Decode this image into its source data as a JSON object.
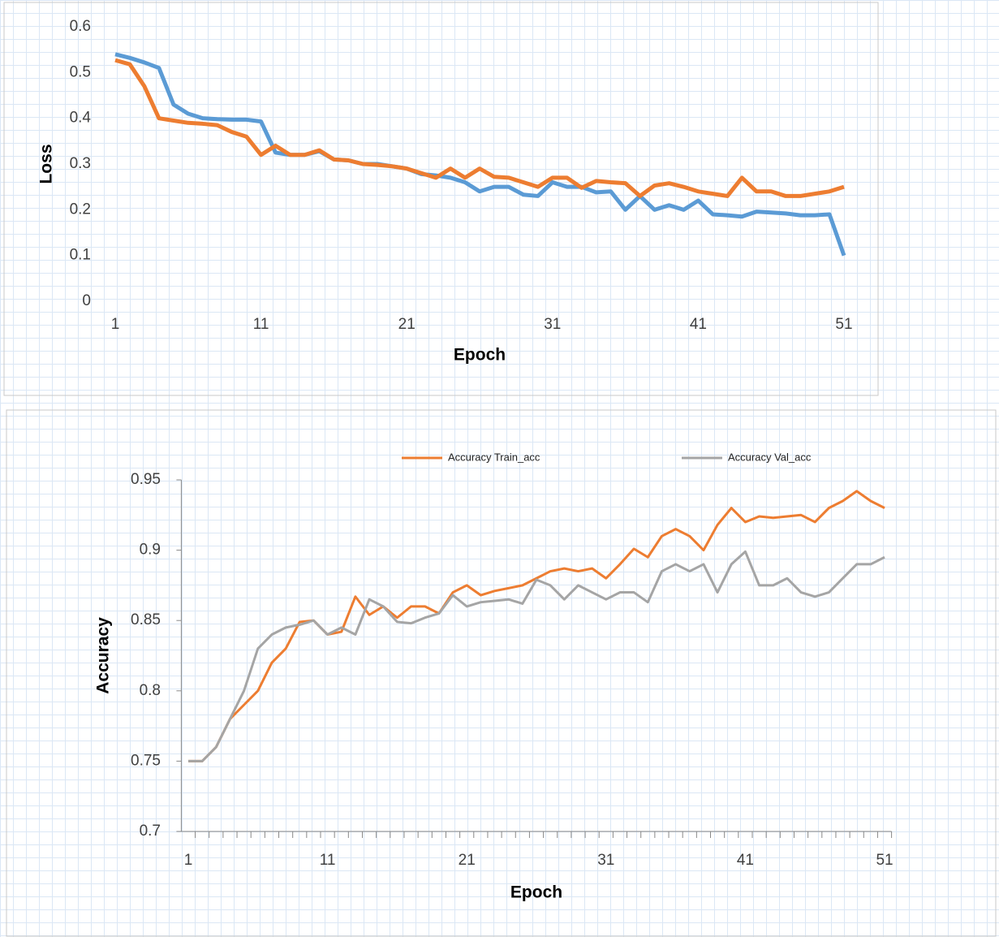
{
  "chart_data": [
    {
      "type": "line",
      "ylabel": "Loss",
      "xlabel": "Epoch",
      "x": [
        1,
        2,
        3,
        4,
        5,
        6,
        7,
        8,
        9,
        10,
        11,
        12,
        13,
        14,
        15,
        16,
        17,
        18,
        19,
        20,
        21,
        22,
        23,
        24,
        25,
        26,
        27,
        28,
        29,
        30,
        31,
        32,
        33,
        34,
        35,
        36,
        37,
        38,
        39,
        40,
        41,
        42,
        43,
        44,
        45,
        46,
        47,
        48,
        49,
        50,
        51
      ],
      "xlim": [
        1,
        51
      ],
      "xticks": [
        1,
        11,
        21,
        31,
        41,
        51
      ],
      "ylim": [
        0,
        0.6
      ],
      "yticks": [
        0,
        0.1,
        0.2,
        0.3,
        0.4,
        0.5,
        0.6
      ],
      "series": [
        {
          "color": "#5b9bd5",
          "values": [
            0.54,
            0.532,
            0.522,
            0.51,
            0.43,
            0.41,
            0.4,
            0.398,
            0.397,
            0.397,
            0.393,
            0.325,
            0.32,
            0.32,
            0.328,
            0.31,
            0.308,
            0.3,
            0.3,
            0.295,
            0.29,
            0.278,
            0.275,
            0.27,
            0.26,
            0.24,
            0.25,
            0.25,
            0.233,
            0.23,
            0.26,
            0.25,
            0.25,
            0.238,
            0.24,
            0.2,
            0.23,
            0.2,
            0.21,
            0.2,
            0.22,
            0.19,
            0.188,
            0.185,
            0.196,
            0.194,
            0.192,
            0.188,
            0.188,
            0.19,
            0.1
          ]
        },
        {
          "color": "#ed7d31",
          "values": [
            0.527,
            0.518,
            0.47,
            0.4,
            0.395,
            0.39,
            0.388,
            0.385,
            0.37,
            0.36,
            0.32,
            0.34,
            0.32,
            0.32,
            0.33,
            0.31,
            0.308,
            0.3,
            0.298,
            0.295,
            0.29,
            0.28,
            0.27,
            0.29,
            0.27,
            0.29,
            0.272,
            0.27,
            0.26,
            0.25,
            0.27,
            0.27,
            0.248,
            0.263,
            0.26,
            0.258,
            0.23,
            0.253,
            0.258,
            0.25,
            0.24,
            0.235,
            0.23,
            0.27,
            0.24,
            0.24,
            0.23,
            0.23,
            0.235,
            0.24,
            0.25
          ]
        }
      ]
    },
    {
      "type": "line",
      "ylabel": "Accuracy",
      "xlabel": "Epoch",
      "legend": "top",
      "x": [
        1,
        2,
        3,
        4,
        5,
        6,
        7,
        8,
        9,
        10,
        11,
        12,
        13,
        14,
        15,
        16,
        17,
        18,
        19,
        20,
        21,
        22,
        23,
        24,
        25,
        26,
        27,
        28,
        29,
        30,
        31,
        32,
        33,
        34,
        35,
        36,
        37,
        38,
        39,
        40,
        41,
        42,
        43,
        44,
        45,
        46,
        47,
        48,
        49,
        50,
        51
      ],
      "xlim": [
        0.5,
        51.5
      ],
      "xticks": [
        1,
        11,
        21,
        31,
        41,
        51
      ],
      "ylim": [
        0.7,
        0.95
      ],
      "yticks": [
        0.7,
        0.75,
        0.8,
        0.85,
        0.9,
        0.95
      ],
      "series": [
        {
          "name": "Accuracy Train_acc",
          "color": "#ed7d31",
          "values": [
            0.75,
            0.75,
            0.76,
            0.78,
            0.79,
            0.8,
            0.82,
            0.83,
            0.849,
            0.85,
            0.84,
            0.842,
            0.867,
            0.854,
            0.86,
            0.852,
            0.86,
            0.86,
            0.855,
            0.87,
            0.875,
            0.868,
            0.871,
            0.873,
            0.875,
            0.88,
            0.885,
            0.887,
            0.885,
            0.887,
            0.88,
            0.89,
            0.901,
            0.895,
            0.91,
            0.915,
            0.91,
            0.9,
            0.918,
            0.93,
            0.92,
            0.924,
            0.923,
            0.924,
            0.925,
            0.92,
            0.93,
            0.935,
            0.942,
            0.935,
            0.93
          ]
        },
        {
          "name": "Accuracy Val_acc",
          "color": "#a5a5a5",
          "values": [
            0.75,
            0.75,
            0.76,
            0.78,
            0.8,
            0.83,
            0.84,
            0.845,
            0.847,
            0.85,
            0.84,
            0.845,
            0.84,
            0.865,
            0.86,
            0.849,
            0.848,
            0.852,
            0.855,
            0.868,
            0.86,
            0.863,
            0.864,
            0.865,
            0.862,
            0.879,
            0.875,
            0.865,
            0.875,
            0.87,
            0.865,
            0.87,
            0.87,
            0.863,
            0.885,
            0.89,
            0.885,
            0.89,
            0.87,
            0.89,
            0.899,
            0.875,
            0.875,
            0.88,
            0.87,
            0.867,
            0.87,
            0.88,
            0.89,
            0.89,
            0.895
          ]
        }
      ]
    }
  ]
}
